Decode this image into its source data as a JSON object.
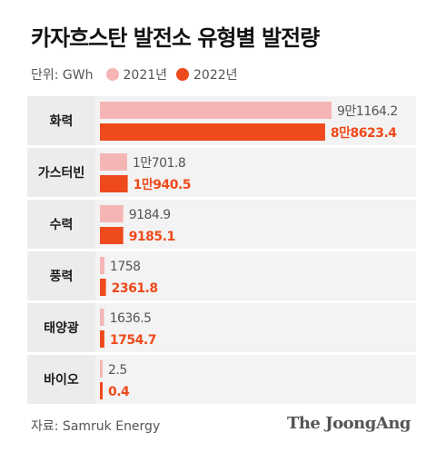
{
  "header": {
    "title": "카자흐스탄 발전소 유형별 발전량",
    "unit": "단위: GWh"
  },
  "legend": [
    {
      "label": "2021년",
      "color": "#f5b5b5"
    },
    {
      "label": "2022년",
      "color": "#ee4a1c"
    }
  ],
  "chart_data": {
    "type": "bar",
    "orientation": "horizontal",
    "title": "카자흐스탄 발전소 유형별 발전량",
    "unit": "GWh",
    "categories": [
      "화력",
      "가스터빈",
      "수력",
      "풍력",
      "태양광",
      "바이오"
    ],
    "series": [
      {
        "name": "2021년",
        "color": "#f5b5b5",
        "values": [
          91164.2,
          10701.8,
          9184.9,
          1758,
          1636.5,
          2.5
        ],
        "labels": [
          "9만1164.2",
          "1만701.8",
          "9184.9",
          "1758",
          "1636.5",
          "2.5"
        ]
      },
      {
        "name": "2022년",
        "color": "#ee4a1c",
        "values": [
          88623.4,
          10940.5,
          9185.1,
          2361.8,
          1754.7,
          0.4
        ],
        "labels": [
          "8만8623.4",
          "1만940.5",
          "9185.1",
          "2361.8",
          "1754.7",
          "0.4"
        ]
      }
    ],
    "grid": false,
    "legend_position": "top-left"
  },
  "footer": {
    "source": "자료: Samruk Energy",
    "brand": "The JoongAng"
  }
}
